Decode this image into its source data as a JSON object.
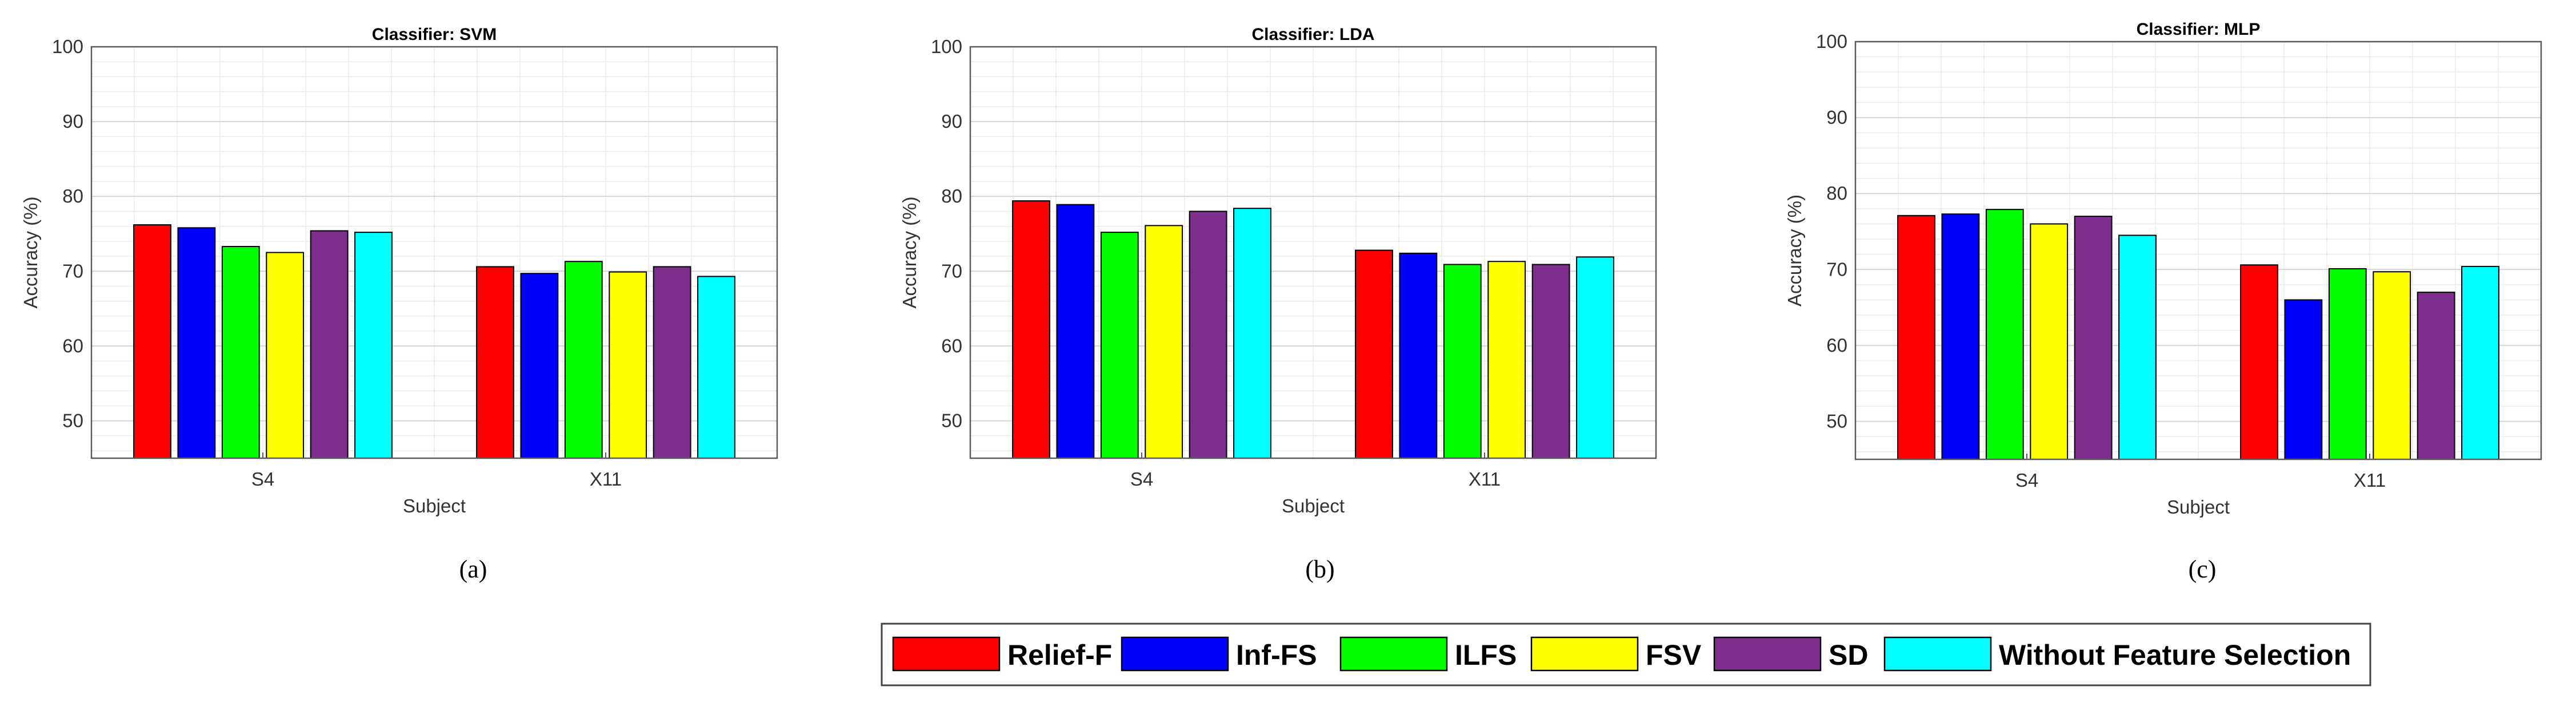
{
  "chart_data": [
    {
      "type": "bar",
      "title": "Classifier: SVM",
      "caption": "(a)",
      "xlabel": "Subject",
      "ylabel": "Accuracy (%)",
      "ylim": [
        45,
        100
      ],
      "yticks": [
        50,
        60,
        70,
        80,
        90,
        100
      ],
      "categories": [
        "S4",
        "X11"
      ],
      "series": [
        {
          "name": "Relief-F",
          "values": [
            76.2,
            70.6
          ]
        },
        {
          "name": "Inf-FS",
          "values": [
            75.8,
            69.7
          ]
        },
        {
          "name": "ILFS",
          "values": [
            73.3,
            71.3
          ]
        },
        {
          "name": "FSV",
          "values": [
            72.5,
            69.9
          ]
        },
        {
          "name": "SD",
          "values": [
            75.4,
            70.6
          ]
        },
        {
          "name": "Without Feature Selection",
          "values": [
            75.2,
            69.3
          ]
        }
      ]
    },
    {
      "type": "bar",
      "title": "Classifier: LDA",
      "caption": "(b)",
      "xlabel": "Subject",
      "ylabel": "Accuracy (%)",
      "ylim": [
        45,
        100
      ],
      "yticks": [
        50,
        60,
        70,
        80,
        90,
        100
      ],
      "categories": [
        "S4",
        "X11"
      ],
      "series": [
        {
          "name": "Relief-F",
          "values": [
            79.4,
            72.8
          ]
        },
        {
          "name": "Inf-FS",
          "values": [
            78.9,
            72.4
          ]
        },
        {
          "name": "ILFS",
          "values": [
            75.2,
            70.9
          ]
        },
        {
          "name": "FSV",
          "values": [
            76.1,
            71.3
          ]
        },
        {
          "name": "SD",
          "values": [
            78.0,
            70.9
          ]
        },
        {
          "name": "Without Feature Selection",
          "values": [
            78.4,
            71.9
          ]
        }
      ]
    },
    {
      "type": "bar",
      "title": "Classifier: MLP",
      "caption": "(c)",
      "xlabel": "Subject",
      "ylabel": "Accuracy (%)",
      "ylim": [
        45,
        100
      ],
      "yticks": [
        50,
        60,
        70,
        80,
        90,
        100
      ],
      "categories": [
        "S4",
        "X11"
      ],
      "series": [
        {
          "name": "Relief-F",
          "values": [
            77.1,
            70.6
          ]
        },
        {
          "name": "Inf-FS",
          "values": [
            77.3,
            66.0
          ]
        },
        {
          "name": "ILFS",
          "values": [
            77.9,
            70.1
          ]
        },
        {
          "name": "FSV",
          "values": [
            76.0,
            69.7
          ]
        },
        {
          "name": "SD",
          "values": [
            77.0,
            67.0
          ]
        },
        {
          "name": "Without Feature Selection",
          "values": [
            74.5,
            70.4
          ]
        }
      ]
    }
  ],
  "legend": [
    {
      "label": "Relief-F",
      "color": "#ff0000"
    },
    {
      "label": "Inf-FS",
      "color": "#0000ff"
    },
    {
      "label": "ILFS",
      "color": "#00ff00"
    },
    {
      "label": "FSV",
      "color": "#ffff00"
    },
    {
      "label": "SD",
      "color": "#7e2f8e"
    },
    {
      "label": "Without Feature Selection",
      "color": "#00ffff"
    }
  ]
}
